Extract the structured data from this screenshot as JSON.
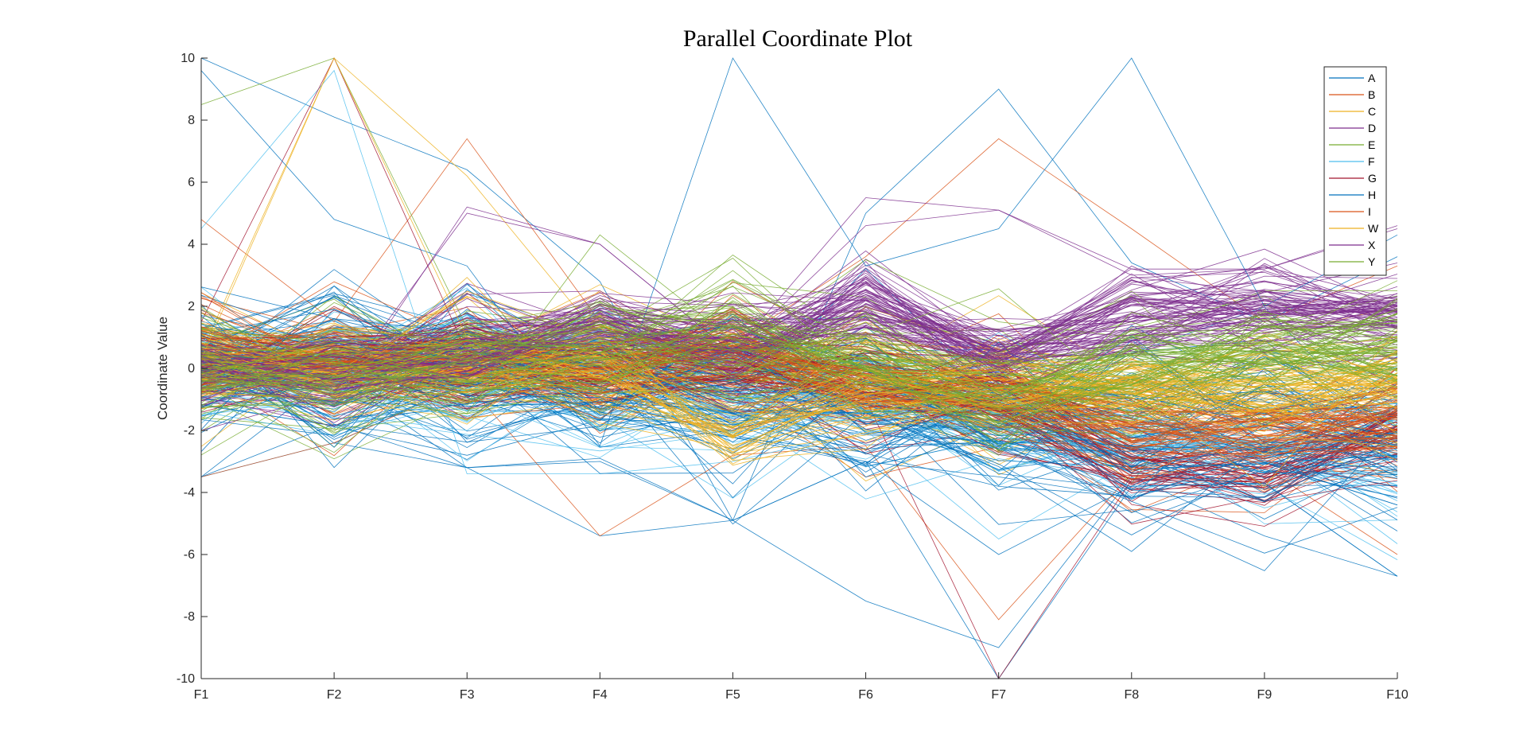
{
  "chart_data": {
    "type": "line",
    "subtype": "parallel-coordinates",
    "title": "Parallel Coordinate Plot",
    "ylabel": "Coordinate Value",
    "xlabel": "",
    "categories": [
      "F1",
      "F2",
      "F3",
      "F4",
      "F5",
      "F6",
      "F7",
      "F8",
      "F9",
      "F10"
    ],
    "ylim": [
      -10,
      10
    ],
    "yticks": [
      "10",
      "8",
      "6",
      "4",
      "2",
      "0",
      "-2",
      "-4",
      "-6",
      "-8",
      "-10"
    ],
    "grid": false,
    "legend_position": "top-right",
    "series": [
      {
        "name": "A",
        "color": "#0072BD",
        "center": [
          0.1,
          0.2,
          0.1,
          -0.3,
          -0.5,
          -0.7,
          -1.2,
          -1.5,
          -1.4,
          -1.8
        ],
        "spread": 1.6,
        "outliers": [
          [
            -3.5,
            -2.4,
            -3.2,
            -5.4,
            -4.9,
            -3.0,
            -10.0,
            -3.8,
            -3.7,
            -6.7
          ],
          [
            10.0,
            8.1,
            6.4,
            2.8,
            -4.9,
            5.0,
            9.0,
            3.4,
            1.5,
            3.6
          ],
          [
            -3.5,
            -1.8,
            -3.2,
            -2.9,
            -4.9,
            -7.5,
            -9.0,
            -3.5,
            -5.4,
            -6.7
          ]
        ]
      },
      {
        "name": "B",
        "color": "#D95319",
        "center": [
          0.3,
          0.2,
          0.1,
          0.0,
          0.4,
          -0.9,
          -1.0,
          -2.0,
          -2.2,
          -1.6
        ],
        "spread": 1.2,
        "outliers": [
          [
            4.8,
            1.5,
            7.4,
            1.5,
            0.8,
            3.6,
            7.4,
            4.5,
            1.5,
            3.3
          ],
          [
            -3.5,
            -2.4,
            -0.5,
            -5.4,
            -2.8,
            -2.5,
            -8.1,
            -3.4,
            -3.2,
            -6.0
          ]
        ]
      },
      {
        "name": "C",
        "color": "#EDB120",
        "center": [
          0.2,
          0.1,
          0.2,
          0.3,
          0.3,
          -0.3,
          -0.8,
          -0.9,
          -0.7,
          -0.9
        ],
        "spread": 1.0,
        "outliers": [
          [
            0.5,
            10.0,
            6.2,
            1.0,
            -1.8,
            2.0,
            0.5,
            -1.0,
            1.0,
            2.0
          ]
        ]
      },
      {
        "name": "D",
        "color": "#7E2F8E",
        "center": [
          -0.2,
          0.0,
          0.4,
          1.2,
          0.1,
          2.0,
          0.4,
          1.5,
          1.8,
          1.6
        ],
        "spread": 1.0,
        "outliers": [
          [
            -0.5,
            -1.2,
            5.2,
            4.0,
            0.5,
            4.6,
            5.1,
            3.2,
            3.2,
            4.6
          ]
        ]
      },
      {
        "name": "E",
        "color": "#77AC30",
        "center": [
          -0.2,
          -0.1,
          0.0,
          0.2,
          0.6,
          0.4,
          -0.9,
          -0.3,
          0.4,
          0.8
        ],
        "spread": 1.3,
        "outliers": [
          [
            8.5,
            10.0,
            1.3,
            -2.0,
            0.5,
            3.5,
            1.5,
            1.0,
            2.5,
            2.5
          ]
        ]
      },
      {
        "name": "F",
        "color": "#4DBEEE",
        "center": [
          0.1,
          0.1,
          0.0,
          -0.6,
          -1.0,
          -1.3,
          -2.0,
          -2.5,
          -2.6,
          -2.8
        ],
        "spread": 1.2,
        "outliers": [
          [
            4.5,
            9.6,
            -3.4,
            -3.4,
            -3.0,
            -2.0,
            -5.5,
            -3.0,
            -3.0,
            -4.0
          ]
        ]
      },
      {
        "name": "G",
        "color": "#A2142F",
        "center": [
          0.1,
          0.2,
          0.0,
          -0.2,
          -0.2,
          -0.5,
          -1.0,
          -3.5,
          -3.3,
          -2.0
        ],
        "spread": 0.9,
        "outliers": [
          [
            1.5,
            10.0,
            0.5,
            -1.0,
            -0.5,
            -1.0,
            -10.0,
            -3.6,
            -3.5,
            -3.0
          ]
        ]
      },
      {
        "name": "H",
        "color": "#0072BD",
        "center": [
          0.0,
          0.0,
          0.2,
          -0.8,
          -1.5,
          -1.4,
          -2.2,
          -2.8,
          -2.8,
          -3.0
        ],
        "spread": 1.5,
        "outliers": [
          [
            9.6,
            4.8,
            3.3,
            -2.5,
            10.0,
            3.3,
            4.5,
            10.0,
            2.0,
            4.3
          ],
          [
            -3.5,
            -0.2,
            -3.2,
            -3.0,
            -4.9,
            -3.0,
            -6.0,
            -3.8,
            -3.7,
            -6.7
          ]
        ]
      },
      {
        "name": "I",
        "color": "#D95319",
        "center": [
          0.5,
          0.3,
          0.2,
          -0.1,
          0.8,
          -0.8,
          -1.0,
          -2.2,
          -2.0,
          -1.6
        ],
        "spread": 0.7,
        "outliers": []
      },
      {
        "name": "W",
        "color": "#EDB120",
        "center": [
          0.0,
          0.0,
          0.1,
          0.2,
          -1.8,
          -0.5,
          -0.8,
          -0.7,
          -0.5,
          -0.6
        ],
        "spread": 1.0,
        "outliers": [
          [
            0.3,
            10.0,
            1.0,
            0.8,
            -0.3,
            1.5,
            -0.5,
            0.0,
            0.5,
            1.0
          ]
        ]
      },
      {
        "name": "X",
        "color": "#7E2F8E",
        "center": [
          -0.1,
          -0.2,
          0.3,
          1.5,
          0.6,
          2.2,
          0.4,
          1.8,
          2.0,
          1.8
        ],
        "spread": 0.7,
        "outliers": [
          [
            -2.0,
            -0.8,
            5.0,
            4.0,
            0.5,
            5.5,
            5.1,
            3.0,
            3.2,
            4.5
          ]
        ]
      },
      {
        "name": "Y",
        "color": "#77AC30",
        "center": [
          -0.3,
          -0.2,
          0.1,
          0.4,
          0.6,
          0.2,
          -1.0,
          -0.1,
          0.5,
          0.8
        ],
        "spread": 1.1,
        "outliers": []
      }
    ]
  }
}
